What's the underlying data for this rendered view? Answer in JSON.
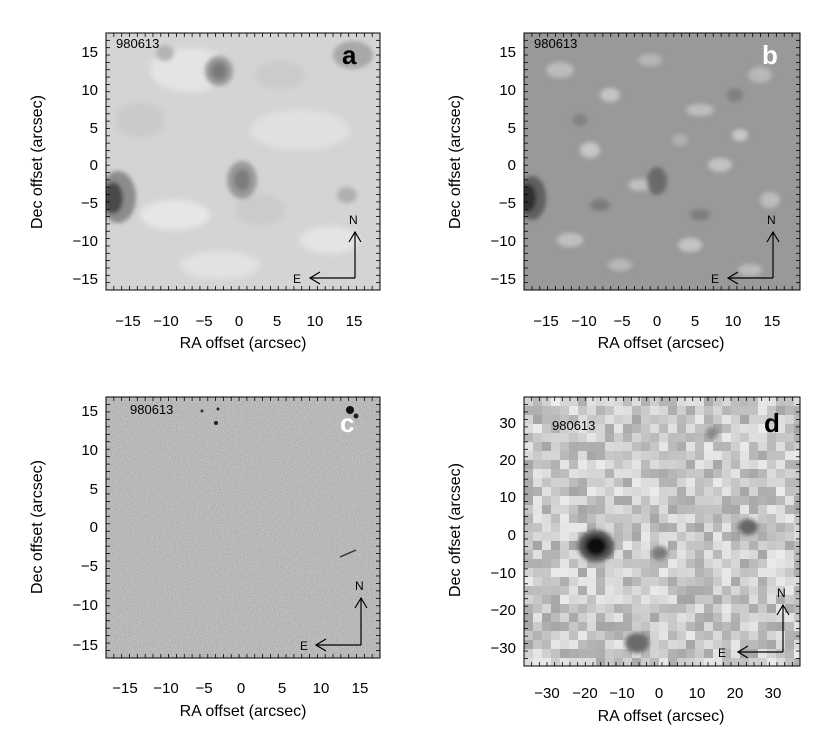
{
  "panels": [
    {
      "id": "a",
      "obs_label": "980613",
      "corner_letter": "a",
      "letter_color": "#000000",
      "bg_color": "#d9d9d9",
      "xlabel": "RA offset (arcsec)",
      "ylabel": "Dec offset (arcsec)",
      "xticks": [
        "−15",
        "−10",
        "−5",
        "0",
        "5",
        "10",
        "15"
      ],
      "yticks": [
        "15",
        "10",
        "5",
        "0",
        "−5",
        "−10",
        "−15"
      ],
      "compass": {
        "north": "N",
        "east": "E"
      }
    },
    {
      "id": "b",
      "obs_label": "980613",
      "corner_letter": "b",
      "letter_color": "#ffffff",
      "bg_color": "#9a9a9a",
      "xlabel": "RA offset (arcsec)",
      "ylabel": "Dec offset (arcsec)",
      "xticks": [
        "−15",
        "−10",
        "−5",
        "0",
        "5",
        "10",
        "15"
      ],
      "yticks": [
        "15",
        "10",
        "5",
        "0",
        "−5",
        "−10",
        "−15"
      ],
      "compass": {
        "north": "N",
        "east": "E"
      }
    },
    {
      "id": "c",
      "obs_label": "980613",
      "corner_letter": "c",
      "letter_color": "#ffffff",
      "bg_color": "#a6a6a6",
      "xlabel": "RA offset (arcsec)",
      "ylabel": "Dec offset (arcsec)",
      "xticks": [
        "−15",
        "−10",
        "−5",
        "0",
        "5",
        "10",
        "15"
      ],
      "yticks": [
        "15",
        "10",
        "5",
        "0",
        "−5",
        "−10",
        "−15"
      ],
      "compass": {
        "north": "N",
        "east": "E"
      }
    },
    {
      "id": "d",
      "obs_label": "980613",
      "corner_letter": "d",
      "letter_color": "#000000",
      "bg_color": "#bdbdbd",
      "xlabel": "RA offset (arcsec)",
      "ylabel": "Dec offset (arcsec)",
      "xticks": [
        "−30",
        "−20",
        "−10",
        "0",
        "10",
        "20",
        "30"
      ],
      "yticks": [
        "30",
        "20",
        "10",
        "0",
        "−10",
        "−20",
        "−30"
      ],
      "compass": {
        "north": "N",
        "east": "E"
      }
    }
  ]
}
